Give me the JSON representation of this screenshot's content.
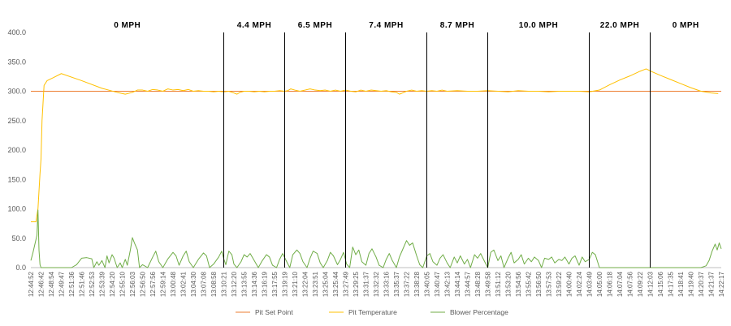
{
  "chart_data": {
    "type": "line",
    "ylim": [
      0,
      400
    ],
    "y_ticks": [
      "0.0",
      "50.0",
      "100.0",
      "150.0",
      "200.0",
      "250.0",
      "300.0",
      "350.0",
      "400.0"
    ],
    "grid": false,
    "legend_position": "bottom",
    "x_tick_labels": [
      "12:44:52",
      "12:46:42",
      "12:48:54",
      "12:49:47",
      "12:51:36",
      "12:51:46",
      "12:52:53",
      "12:53:39",
      "12:54:20",
      "12:55:10",
      "12:56:03",
      "12:56:50",
      "12:57:56",
      "12:59:14",
      "13:00:48",
      "13:02:41",
      "13:04:30",
      "13:07:08",
      "13:08:58",
      "13:10:21",
      "13:12:20",
      "13:13:55",
      "13:14:36",
      "13:16:19",
      "13:17:55",
      "13:19:19",
      "13:21:10",
      "13:22:04",
      "13:23:51",
      "13:25:04",
      "13:25:44",
      "13:27:49",
      "13:29:25",
      "13:31:37",
      "13:32:32",
      "13:33:16",
      "13:35:37",
      "13:37:22",
      "13:38:28",
      "13:40:05",
      "13:40:47",
      "13:42:13",
      "13:44:14",
      "13:44:57",
      "13:48:28",
      "13:49:58",
      "13:51:12",
      "13:53:20",
      "13:54:56",
      "13:55:42",
      "13:56:50",
      "13:57:53",
      "13:59:22",
      "14:00:40",
      "14:02:24",
      "14:03:49",
      "14:05:00",
      "14:06:18",
      "14:07:04",
      "14:07:56",
      "14:09:22",
      "14:12:03",
      "14:15:06",
      "14:17:35",
      "14:18:41",
      "14:19:40",
      "14:20:37",
      "14:21:37",
      "14:22:17"
    ],
    "wind_segments": [
      {
        "label": "0 MPH",
        "start": 0,
        "end": 19
      },
      {
        "label": "4.4 MPH",
        "start": 19,
        "end": 25
      },
      {
        "label": "6.5 MPH",
        "start": 25,
        "end": 31
      },
      {
        "label": "7.4 MPH",
        "start": 31,
        "end": 39
      },
      {
        "label": "8.7 MPH",
        "start": 39,
        "end": 45
      },
      {
        "label": "10.0 MPH",
        "start": 45,
        "end": 55
      },
      {
        "label": "22.0 MPH",
        "start": 55,
        "end": 61
      },
      {
        "label": "0 MPH",
        "start": 61,
        "end": 68
      }
    ],
    "series": [
      {
        "name": "Pit Set Point",
        "color": "#ED7D31",
        "points": [
          [
            0,
            300
          ],
          [
            68,
            300
          ]
        ]
      },
      {
        "name": "Pit Temperature",
        "color": "#FFC000",
        "points": [
          [
            0,
            78
          ],
          [
            0.5,
            78
          ],
          [
            0.7,
            100
          ],
          [
            0.9,
            160
          ],
          [
            1.0,
            185
          ],
          [
            1.1,
            250
          ],
          [
            1.3,
            310
          ],
          [
            1.6,
            318
          ],
          [
            2.2,
            323
          ],
          [
            3.0,
            330
          ],
          [
            5,
            318
          ],
          [
            7,
            305
          ],
          [
            8.5,
            298
          ],
          [
            9.3,
            295
          ],
          [
            10,
            298
          ],
          [
            10.5,
            302
          ],
          [
            11,
            302
          ],
          [
            11.5,
            300
          ],
          [
            12,
            303
          ],
          [
            12.5,
            302
          ],
          [
            13,
            300
          ],
          [
            13.5,
            304
          ],
          [
            14,
            302
          ],
          [
            14.5,
            303
          ],
          [
            15,
            301
          ],
          [
            15.5,
            303
          ],
          [
            16,
            300
          ],
          [
            16.5,
            301
          ],
          [
            17,
            300
          ],
          [
            17.5,
            300
          ],
          [
            18,
            299
          ],
          [
            18.5,
            300
          ],
          [
            19,
            299
          ],
          [
            19.5,
            300
          ],
          [
            20,
            297
          ],
          [
            20.3,
            295
          ],
          [
            20.6,
            298
          ],
          [
            21,
            300
          ],
          [
            21.5,
            300
          ],
          [
            22,
            299
          ],
          [
            22.5,
            300
          ],
          [
            23,
            299
          ],
          [
            23.5,
            300
          ],
          [
            24,
            300
          ],
          [
            24.5,
            301
          ],
          [
            25,
            300
          ],
          [
            25.3,
            301
          ],
          [
            25.6,
            304
          ],
          [
            26,
            302
          ],
          [
            26.5,
            300
          ],
          [
            27,
            302
          ],
          [
            27.5,
            304
          ],
          [
            28,
            302
          ],
          [
            28.5,
            301
          ],
          [
            29,
            302
          ],
          [
            29.5,
            300
          ],
          [
            30,
            302
          ],
          [
            30.5,
            300
          ],
          [
            31,
            302
          ],
          [
            31.5,
            300
          ],
          [
            32,
            299
          ],
          [
            32.5,
            302
          ],
          [
            33,
            300
          ],
          [
            33.5,
            302
          ],
          [
            34,
            301
          ],
          [
            34.5,
            300
          ],
          [
            35,
            301
          ],
          [
            35.5,
            299
          ],
          [
            36,
            298
          ],
          [
            36.3,
            295
          ],
          [
            36.6,
            297
          ],
          [
            37,
            300
          ],
          [
            37.5,
            302
          ],
          [
            38,
            300
          ],
          [
            38.5,
            301
          ],
          [
            39,
            300
          ],
          [
            39.5,
            301
          ],
          [
            40,
            300
          ],
          [
            40.5,
            302
          ],
          [
            41,
            300
          ],
          [
            42,
            301
          ],
          [
            43,
            300
          ],
          [
            44,
            300
          ],
          [
            45,
            301
          ],
          [
            46,
            300
          ],
          [
            47,
            299
          ],
          [
            48,
            301
          ],
          [
            49,
            300
          ],
          [
            50,
            300
          ],
          [
            51,
            299
          ],
          [
            52,
            300
          ],
          [
            53,
            300
          ],
          [
            54,
            300
          ],
          [
            55,
            299
          ],
          [
            56,
            302
          ],
          [
            57,
            311
          ],
          [
            58,
            319
          ],
          [
            59,
            326
          ],
          [
            60,
            334
          ],
          [
            60.6,
            338
          ],
          [
            61.2,
            333
          ],
          [
            62,
            327
          ],
          [
            63,
            320
          ],
          [
            64,
            313
          ],
          [
            65,
            306
          ],
          [
            66,
            300
          ],
          [
            67,
            297
          ],
          [
            67.7,
            296
          ]
        ]
      },
      {
        "name": "Blower Percentage",
        "color": "#70AD47",
        "points": [
          [
            0,
            12
          ],
          [
            0.2,
            25
          ],
          [
            0.4,
            40
          ],
          [
            0.6,
            55
          ],
          [
            0.7,
            98
          ],
          [
            0.8,
            30
          ],
          [
            0.9,
            5
          ],
          [
            1.0,
            0
          ],
          [
            1.5,
            0
          ],
          [
            2,
            0
          ],
          [
            3,
            0
          ],
          [
            4,
            0
          ],
          [
            4.5,
            5
          ],
          [
            5,
            16
          ],
          [
            5.5,
            17
          ],
          [
            6,
            15
          ],
          [
            6.2,
            0
          ],
          [
            6.5,
            10
          ],
          [
            6.7,
            4
          ],
          [
            7,
            12
          ],
          [
            7.3,
            0
          ],
          [
            7.5,
            20
          ],
          [
            7.7,
            8
          ],
          [
            8,
            22
          ],
          [
            8.2,
            16
          ],
          [
            8.5,
            0
          ],
          [
            8.8,
            8
          ],
          [
            9,
            0
          ],
          [
            9.3,
            14
          ],
          [
            9.5,
            4
          ],
          [
            9.8,
            30
          ],
          [
            10,
            51
          ],
          [
            10.2,
            42
          ],
          [
            10.5,
            30
          ],
          [
            10.7,
            0
          ],
          [
            11,
            5
          ],
          [
            11.5,
            0
          ],
          [
            12,
            18
          ],
          [
            12.3,
            28
          ],
          [
            12.6,
            10
          ],
          [
            13,
            0
          ],
          [
            13.5,
            15
          ],
          [
            14,
            26
          ],
          [
            14.3,
            20
          ],
          [
            14.6,
            4
          ],
          [
            15,
            20
          ],
          [
            15.3,
            28
          ],
          [
            15.6,
            10
          ],
          [
            16,
            0
          ],
          [
            16.5,
            14
          ],
          [
            17,
            25
          ],
          [
            17.3,
            20
          ],
          [
            17.6,
            0
          ],
          [
            18,
            6
          ],
          [
            18.5,
            18
          ],
          [
            18.8,
            28
          ],
          [
            19,
            15
          ],
          [
            19.2,
            5
          ],
          [
            19.5,
            28
          ],
          [
            19.8,
            22
          ],
          [
            20,
            6
          ],
          [
            20.3,
            0
          ],
          [
            20.7,
            10
          ],
          [
            21,
            22
          ],
          [
            21.3,
            18
          ],
          [
            21.6,
            24
          ],
          [
            22,
            12
          ],
          [
            22.4,
            0
          ],
          [
            22.8,
            12
          ],
          [
            23.2,
            22
          ],
          [
            23.5,
            18
          ],
          [
            23.8,
            4
          ],
          [
            24.2,
            0
          ],
          [
            24.5,
            14
          ],
          [
            24.8,
            24
          ],
          [
            25.2,
            10
          ],
          [
            25.5,
            0
          ],
          [
            25.8,
            22
          ],
          [
            26.2,
            30
          ],
          [
            26.5,
            24
          ],
          [
            26.8,
            10
          ],
          [
            27.2,
            0
          ],
          [
            27.5,
            16
          ],
          [
            27.8,
            28
          ],
          [
            28.2,
            24
          ],
          [
            28.5,
            8
          ],
          [
            28.8,
            0
          ],
          [
            29.2,
            12
          ],
          [
            29.5,
            26
          ],
          [
            29.8,
            20
          ],
          [
            30.2,
            5
          ],
          [
            30.5,
            14
          ],
          [
            30.8,
            26
          ],
          [
            31.1,
            6
          ],
          [
            31.4,
            0
          ],
          [
            31.7,
            35
          ],
          [
            32,
            22
          ],
          [
            32.3,
            30
          ],
          [
            32.6,
            10
          ],
          [
            33,
            4
          ],
          [
            33.3,
            24
          ],
          [
            33.6,
            32
          ],
          [
            34,
            18
          ],
          [
            34.3,
            4
          ],
          [
            34.7,
            0
          ],
          [
            35,
            14
          ],
          [
            35.3,
            24
          ],
          [
            35.6,
            12
          ],
          [
            36,
            0
          ],
          [
            36.3,
            18
          ],
          [
            36.6,
            30
          ],
          [
            37,
            46
          ],
          [
            37.3,
            38
          ],
          [
            37.6,
            42
          ],
          [
            38,
            20
          ],
          [
            38.3,
            5
          ],
          [
            38.6,
            0
          ],
          [
            39,
            20
          ],
          [
            39.3,
            24
          ],
          [
            39.6,
            10
          ],
          [
            40,
            4
          ],
          [
            40.3,
            16
          ],
          [
            40.6,
            22
          ],
          [
            41,
            8
          ],
          [
            41.3,
            0
          ],
          [
            41.7,
            18
          ],
          [
            42,
            8
          ],
          [
            42.3,
            20
          ],
          [
            42.7,
            6
          ],
          [
            43,
            14
          ],
          [
            43.3,
            0
          ],
          [
            43.7,
            22
          ],
          [
            44,
            16
          ],
          [
            44.3,
            24
          ],
          [
            44.7,
            10
          ],
          [
            45,
            0
          ],
          [
            45.3,
            26
          ],
          [
            45.6,
            30
          ],
          [
            46,
            12
          ],
          [
            46.3,
            20
          ],
          [
            46.6,
            0
          ],
          [
            47,
            16
          ],
          [
            47.3,
            26
          ],
          [
            47.6,
            8
          ],
          [
            48,
            14
          ],
          [
            48.3,
            22
          ],
          [
            48.6,
            6
          ],
          [
            49,
            16
          ],
          [
            49.3,
            10
          ],
          [
            49.6,
            18
          ],
          [
            50,
            12
          ],
          [
            50.3,
            0
          ],
          [
            50.6,
            16
          ],
          [
            51,
            14
          ],
          [
            51.3,
            18
          ],
          [
            51.6,
            8
          ],
          [
            52,
            14
          ],
          [
            52.3,
            12
          ],
          [
            52.6,
            18
          ],
          [
            53,
            6
          ],
          [
            53.3,
            16
          ],
          [
            53.6,
            20
          ],
          [
            54,
            4
          ],
          [
            54.3,
            18
          ],
          [
            54.6,
            10
          ],
          [
            55,
            14
          ],
          [
            55.3,
            26
          ],
          [
            55.6,
            22
          ],
          [
            56,
            0
          ],
          [
            56.5,
            0
          ],
          [
            57,
            0
          ],
          [
            58,
            0
          ],
          [
            59,
            0
          ],
          [
            60,
            0
          ],
          [
            61,
            0
          ],
          [
            62,
            0
          ],
          [
            63,
            0
          ],
          [
            64,
            0
          ],
          [
            65,
            0
          ],
          [
            66,
            0
          ],
          [
            66.5,
            3
          ],
          [
            66.8,
            12
          ],
          [
            67.1,
            28
          ],
          [
            67.4,
            40
          ],
          [
            67.6,
            30
          ],
          [
            67.8,
            42
          ],
          [
            68,
            32
          ]
        ]
      }
    ]
  }
}
